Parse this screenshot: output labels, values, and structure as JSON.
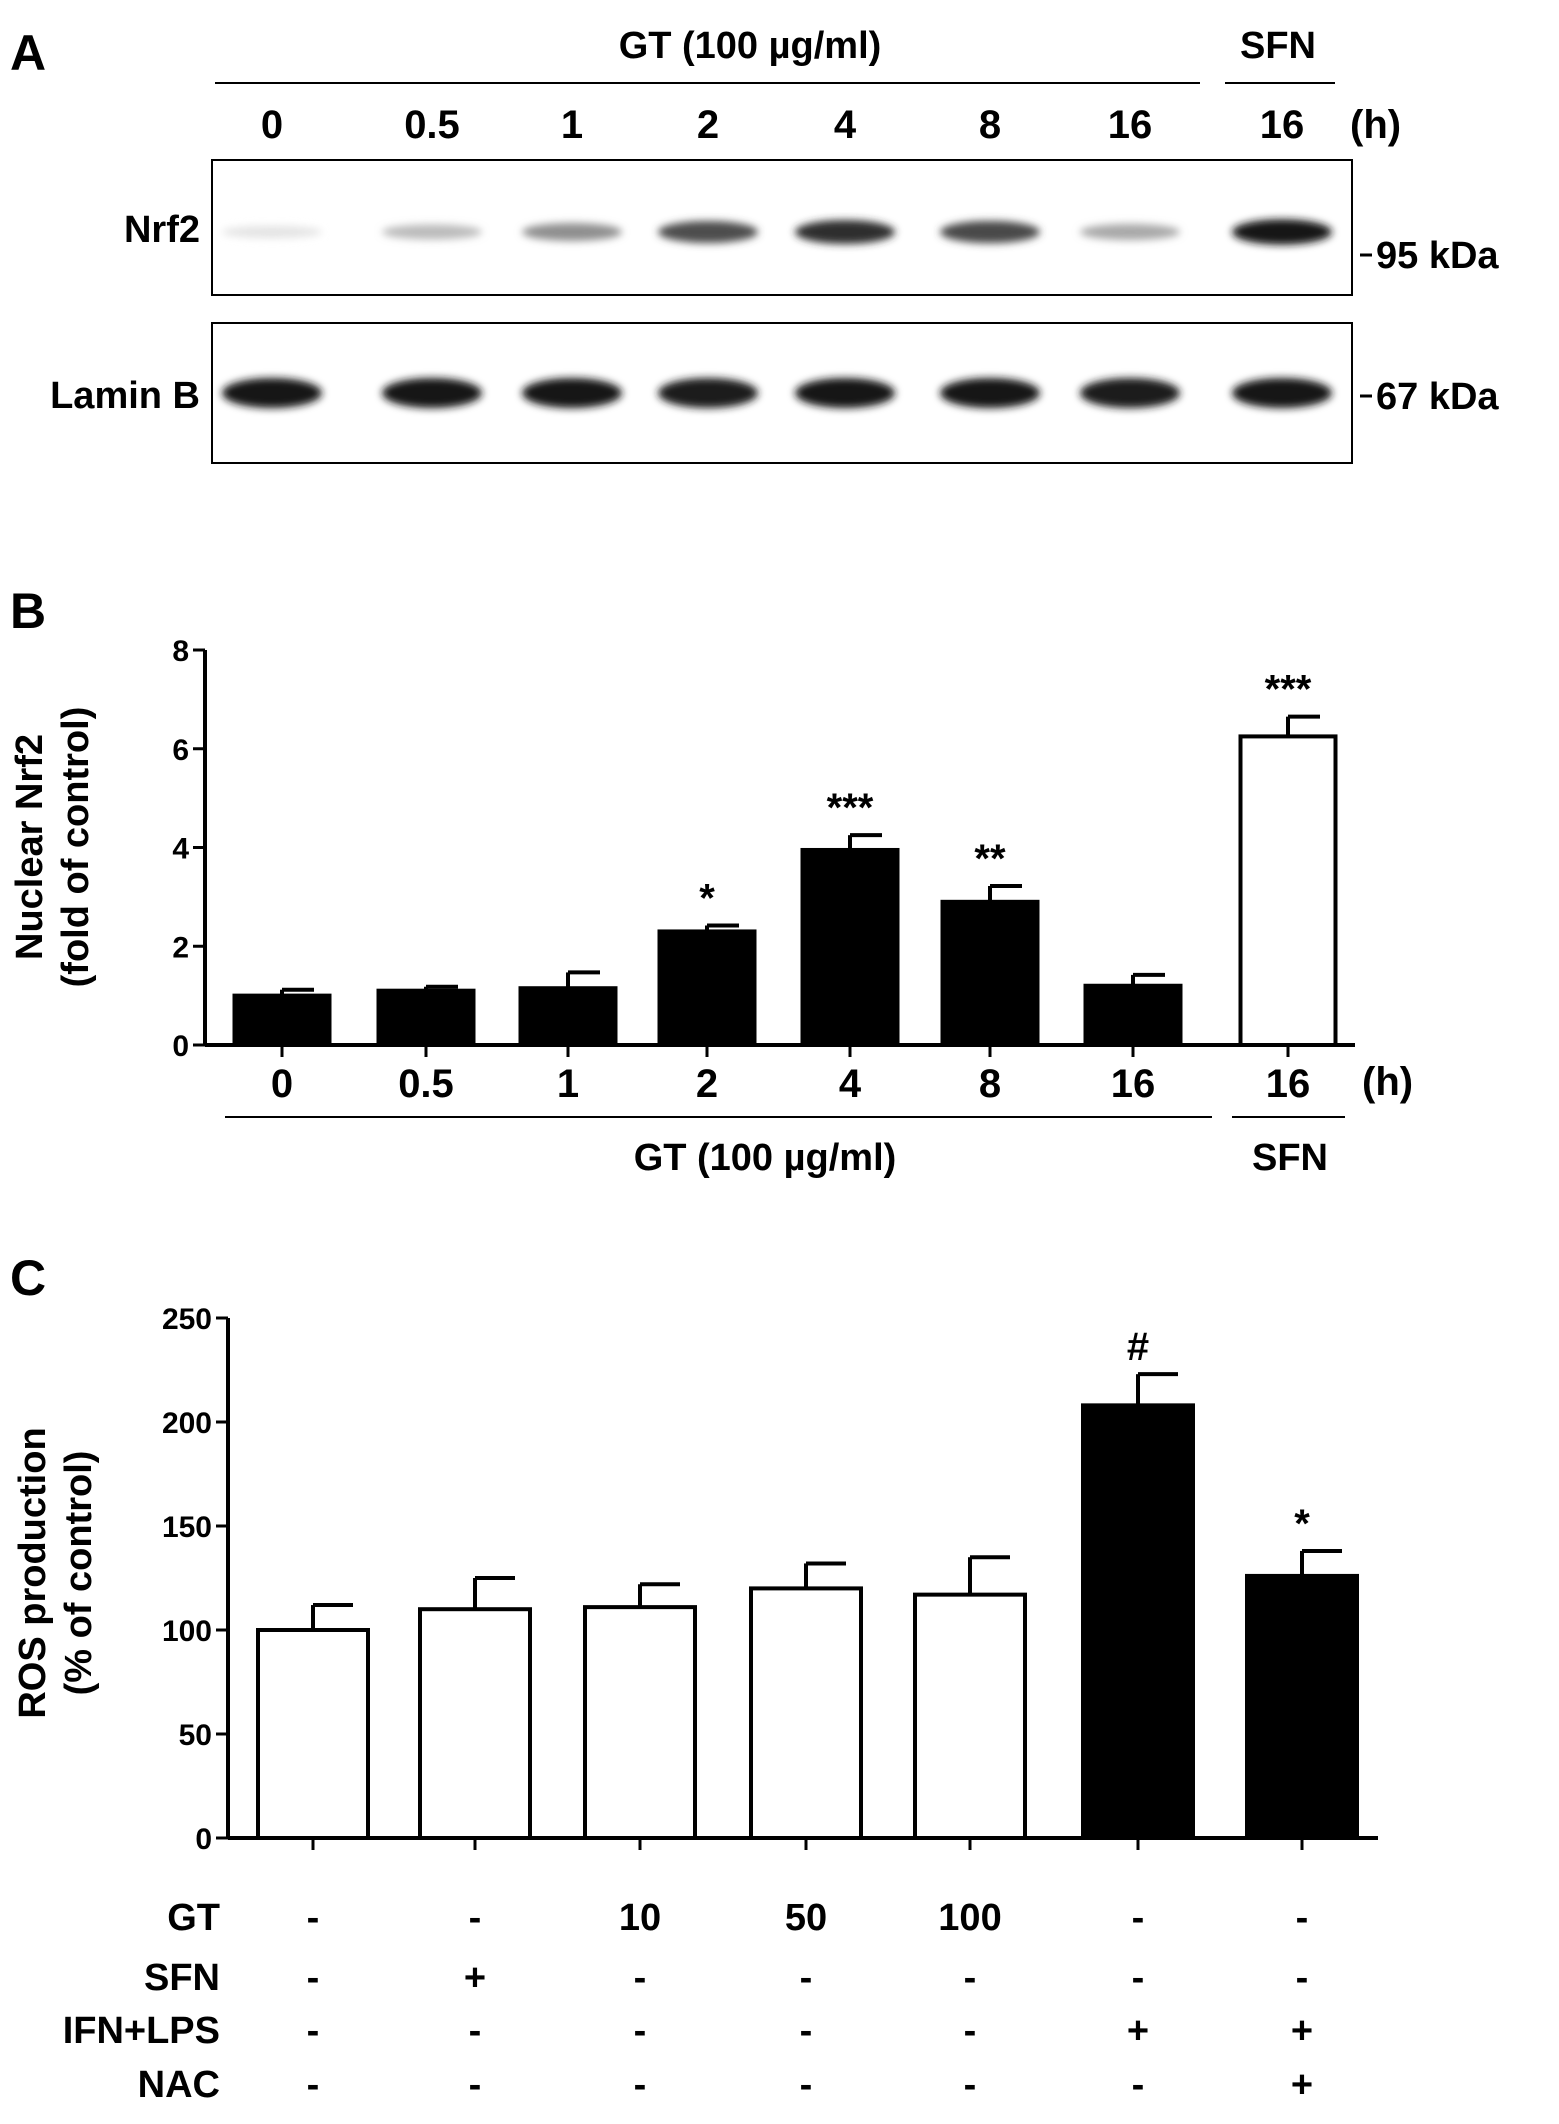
{
  "panel_a": {
    "letter": "A",
    "gt_header": "GT (100 µg/ml)",
    "sfn_header": "SFN",
    "lanes": [
      "0",
      "0.5",
      "1",
      "2",
      "4",
      "8",
      "16",
      "16"
    ],
    "time_unit": "(h)",
    "blots": [
      {
        "label": "Nrf2",
        "marker": "95 kDa",
        "intensities": [
          0.03,
          0.22,
          0.42,
          0.72,
          0.86,
          0.74,
          0.3,
          0.96
        ]
      },
      {
        "label": "Lamin B",
        "marker": "67 kDa",
        "intensities": [
          0.97,
          0.97,
          0.97,
          0.93,
          0.97,
          0.97,
          0.95,
          0.97
        ]
      }
    ]
  },
  "chart_data": [
    {
      "panel": "B",
      "type": "bar",
      "ylabel": "Nuclear Nrf2",
      "ylabel2": "(fold of control)",
      "ylim": [
        0,
        8
      ],
      "yticks": [
        0,
        2,
        4,
        6,
        8
      ],
      "categories": [
        "0",
        "0.5",
        "1",
        "2",
        "4",
        "8",
        "16",
        "16"
      ],
      "x_unit": "(h)",
      "values": [
        1.0,
        1.1,
        1.15,
        2.3,
        3.95,
        2.9,
        1.2,
        6.25
      ],
      "errors": [
        0.12,
        0.08,
        0.32,
        0.12,
        0.3,
        0.32,
        0.22,
        0.4
      ],
      "fill": [
        "black",
        "black",
        "black",
        "black",
        "black",
        "black",
        "black",
        "white"
      ],
      "significance": [
        "",
        "",
        "",
        "*",
        "***",
        "**",
        "",
        "***"
      ],
      "group_labels": [
        "GT (100 µg/ml)",
        "SFN"
      ]
    },
    {
      "panel": "C",
      "type": "bar",
      "ylabel": "ROS production",
      "ylabel2": "(% of control)",
      "ylim": [
        0,
        250
      ],
      "yticks": [
        0,
        50,
        100,
        150,
        200,
        250
      ],
      "values": [
        100,
        110,
        111,
        120,
        117,
        208,
        126
      ],
      "errors": [
        12,
        15,
        11,
        12,
        18,
        15,
        12
      ],
      "fill": [
        "white",
        "white",
        "white",
        "white",
        "white",
        "black",
        "black"
      ],
      "significance": [
        "",
        "",
        "",
        "",
        "",
        "#",
        "*"
      ],
      "conditions": [
        {
          "label": "GT",
          "values": [
            "-",
            "-",
            "10",
            "50",
            "100",
            "-",
            "-"
          ]
        },
        {
          "label": "SFN",
          "values": [
            "-",
            "+",
            "-",
            "-",
            "-",
            "-",
            "-"
          ]
        },
        {
          "label": "IFN+LPS",
          "values": [
            "-",
            "-",
            "-",
            "-",
            "-",
            "+",
            "+"
          ]
        },
        {
          "label": "NAC",
          "values": [
            "-",
            "-",
            "-",
            "-",
            "-",
            "-",
            "+"
          ]
        }
      ]
    }
  ]
}
